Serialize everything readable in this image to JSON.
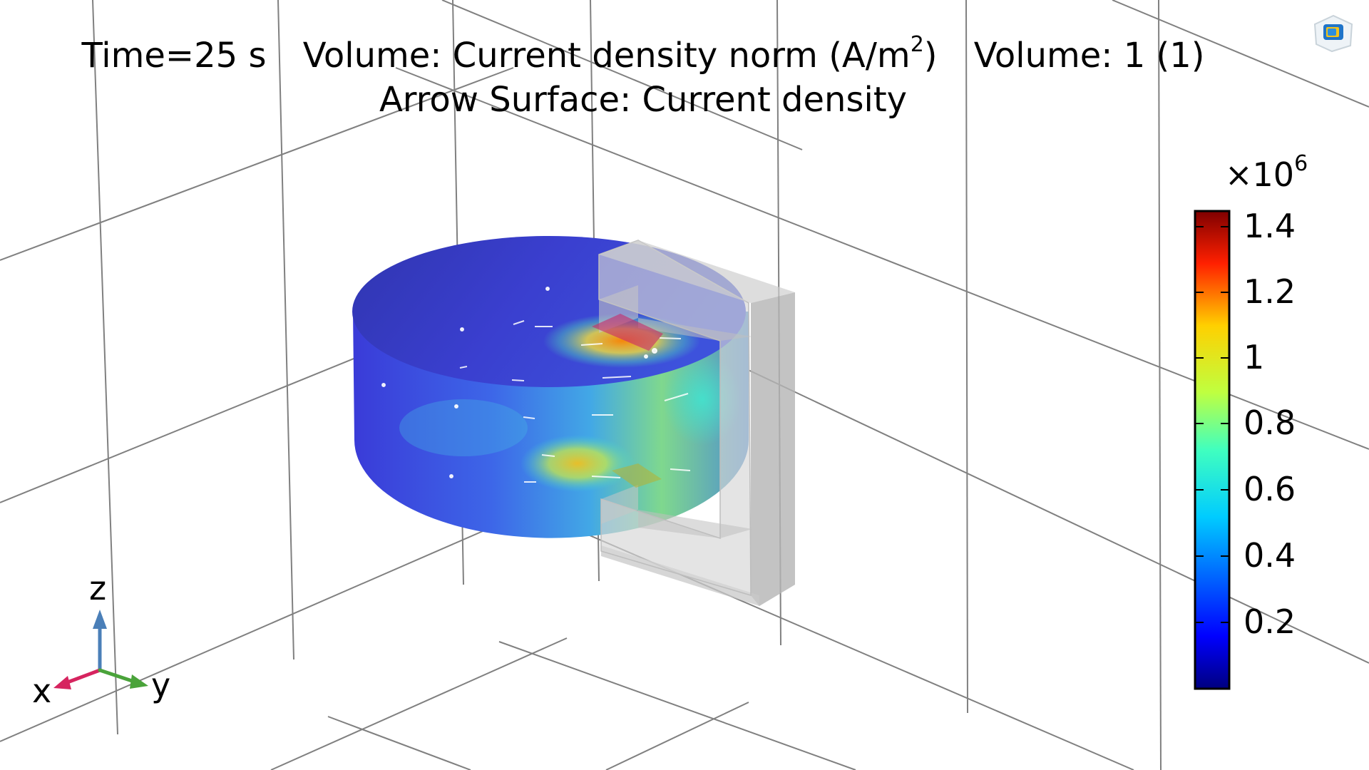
{
  "plot": {
    "title": {
      "time": "Time=25 s",
      "volume_expr_prefix": "Volume: Current density norm (A/m",
      "volume_expr_exp": "2",
      "volume_expr_suffix": ")",
      "volume_2": "Volume: 1 (1)",
      "arrow": "Arrow Surface: Current density"
    },
    "colorbar": {
      "scale_prefix": "×10",
      "scale_exp": "6",
      "ticks": [
        "1.4",
        "1.2",
        "1",
        "0.8",
        "0.6",
        "0.4",
        "0.2"
      ],
      "tick_values": [
        1.4,
        1.2,
        1.0,
        0.8,
        0.6,
        0.4,
        0.2
      ],
      "range": [
        0,
        1.45
      ],
      "colormap": "rainbow"
    },
    "triad": {
      "z_label": "z",
      "x_label": "x",
      "y_label": "y",
      "z_color": "#4a7fb8",
      "x_color": "#d6245f",
      "y_color": "#4aa33a"
    },
    "logo_icon": "comsol-logo-icon",
    "grid": true
  }
}
